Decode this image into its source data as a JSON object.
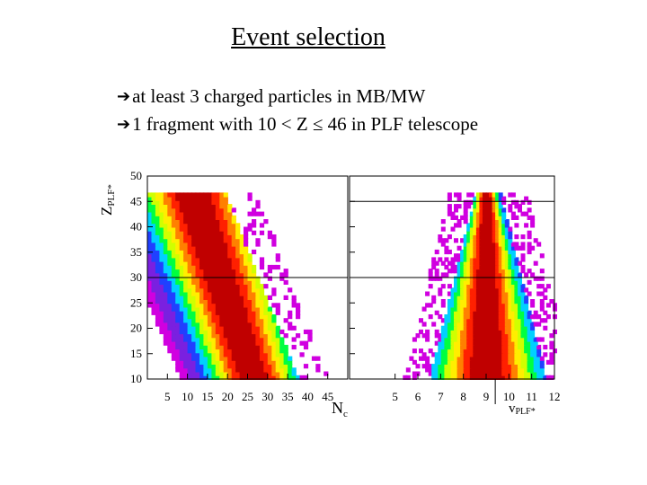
{
  "slide": {
    "title": "Event selection",
    "bullets": [
      {
        "icon": "right-arrow-icon",
        "text": "at least 3 charged particles in MB/MW"
      },
      {
        "icon": "right-arrow-icon",
        "text": "1 fragment with 10 < Z ≤ 46 in PLF telescope"
      }
    ]
  },
  "chart_data": [
    {
      "type": "heatmap",
      "title": "",
      "ylabel": "Z_PLF*",
      "xlabel": "N_c",
      "xlim": [
        0,
        50
      ],
      "ylim": [
        10,
        50
      ],
      "xticks": [
        5,
        10,
        15,
        20,
        25,
        30,
        35,
        40,
        45
      ],
      "yticks": [
        10,
        15,
        20,
        25,
        30,
        35,
        40,
        45,
        50
      ],
      "hlines": [
        30
      ],
      "ridge": {
        "description": "maximum N_c vs Z",
        "points": [
          [
            23,
            12
          ],
          [
            20,
            20
          ],
          [
            15,
            30
          ],
          [
            10,
            40
          ],
          [
            6,
            46
          ]
        ]
      },
      "z_max": 46
    },
    {
      "type": "heatmap",
      "title": "",
      "ylabel": "Z_PLF*",
      "xlabel": "v_PLF*",
      "xlim": [
        3,
        12
      ],
      "ylim": [
        10,
        50
      ],
      "xticks": [
        5,
        6,
        7,
        8,
        9,
        10,
        11,
        12
      ],
      "yticks": [
        10,
        15,
        20,
        25,
        30,
        35,
        40,
        45,
        50
      ],
      "hlines": [
        30,
        45
      ],
      "ridge": {
        "description": "maximum v vs Z",
        "points": [
          [
            9,
            12
          ],
          [
            9,
            30
          ],
          [
            9,
            46
          ]
        ]
      },
      "z_max": 46
    }
  ],
  "labels": {
    "left_ylabel_main": "Z",
    "left_ylabel_sub": "PLF*",
    "left_xlabel_main": "N",
    "left_xlabel_sub": "c",
    "right_xlabel_main": "v",
    "right_xlabel_sub": "PLF*"
  },
  "palette": [
    "#ffffff",
    "#d000e0",
    "#7a20e0",
    "#2040ff",
    "#00d0ff",
    "#00ff40",
    "#d0ff00",
    "#ffee00",
    "#ff8000",
    "#ff2000",
    "#c00000"
  ]
}
